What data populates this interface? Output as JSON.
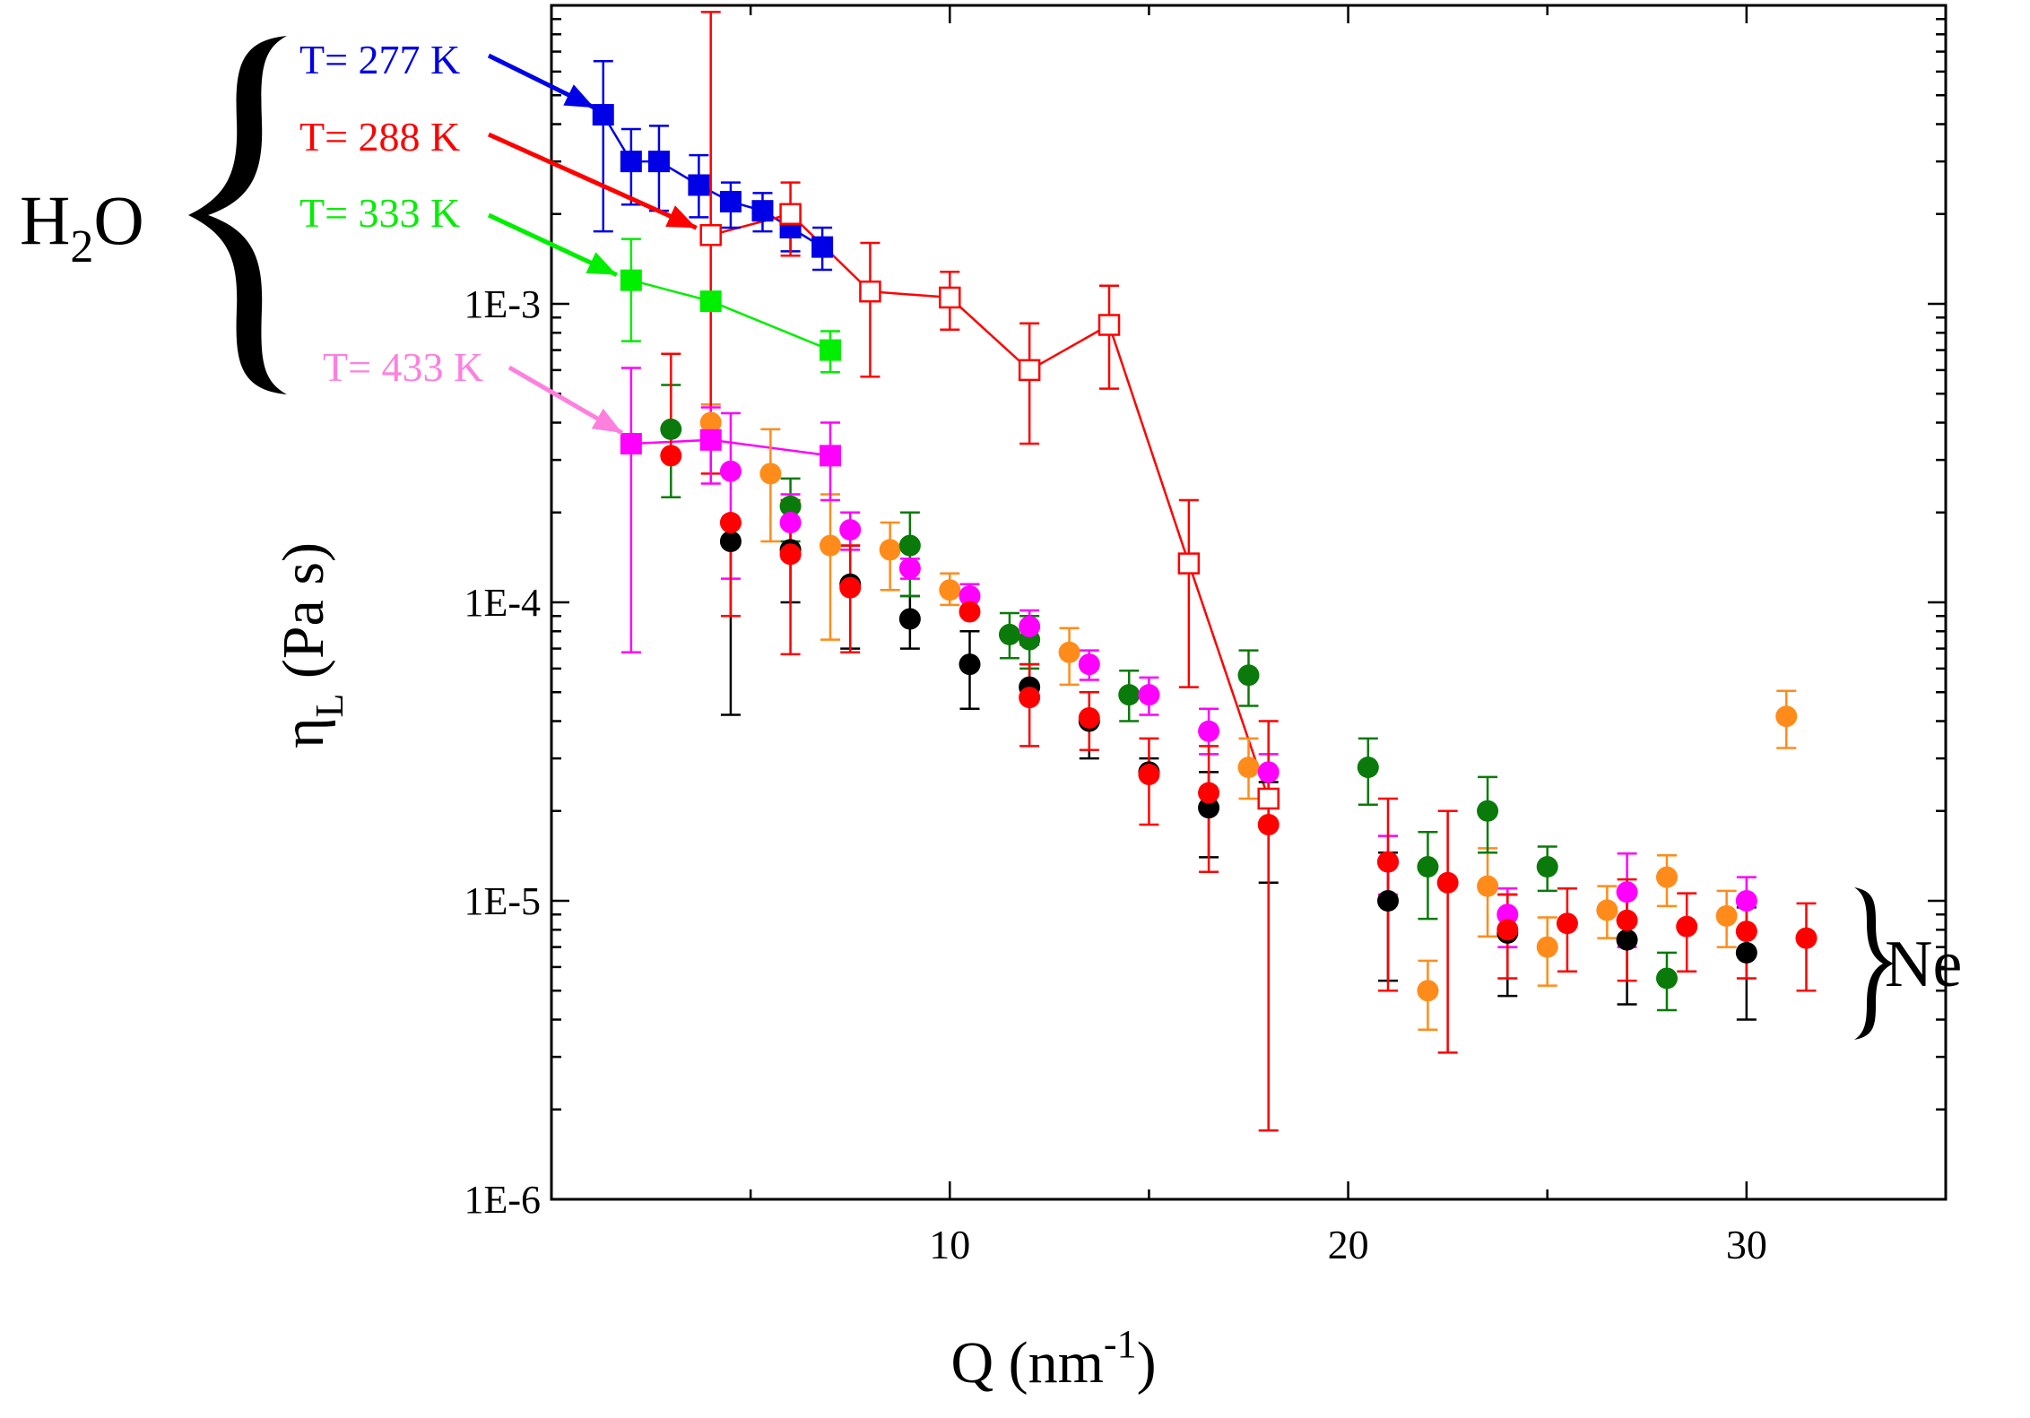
{
  "chart_data": {
    "type": "scatter",
    "title": "",
    "xlabel": "Q (nm",
    "xlabel_sup": "-1",
    "xlabel_close": ")",
    "ylabel": "η",
    "ylabel_sub": "L",
    "ylabel_units": " (Pa s)",
    "xlim": [
      0,
      35
    ],
    "ylim": [
      1e-06,
      0.01
    ],
    "yscale": "log",
    "x_ticks": [
      10,
      20,
      30
    ],
    "x_tick_labels": [
      "10",
      "20",
      "30"
    ],
    "y_ticks": [
      1e-06,
      1e-05,
      0.0001,
      0.001
    ],
    "y_tick_labels": [
      "1E-6",
      "1E-5",
      "1E-4",
      "1E-3"
    ],
    "series_colors": {
      "h2o_277": "#0000e6",
      "h2o_288": "#ff0000",
      "h2o_333": "#00ee00",
      "h2o_433": "#ff00ff",
      "ne_black": "#000000",
      "ne_red": "#ff0000",
      "ne_orange": "#ff8c1a",
      "ne_green": "#0a7a0a",
      "ne_magenta": "#ff00ff"
    },
    "series": [
      {
        "key": "ne_black",
        "name": "Ne (black)",
        "marker": "circle",
        "line": false,
        "points": [
          {
            "x": 4.5,
            "y": 0.00016,
            "lo": 4.2e-05,
            "hi": 0.00016
          },
          {
            "x": 6.0,
            "y": 0.00015,
            "lo": 0.0001,
            "hi": 0.00015
          },
          {
            "x": 7.5,
            "y": 0.000115,
            "lo": 7e-05,
            "hi": 0.000155
          },
          {
            "x": 9.0,
            "y": 8.8e-05,
            "lo": 7e-05,
            "hi": 0.000105
          },
          {
            "x": 10.5,
            "y": 6.2e-05,
            "lo": 4.4e-05,
            "hi": 8e-05
          },
          {
            "x": 12.0,
            "y": 5.2e-05,
            "lo": 5.2e-05,
            "hi": 6.2e-05
          },
          {
            "x": 13.5,
            "y": 4e-05,
            "lo": 3e-05,
            "hi": 5e-05
          },
          {
            "x": 15.0,
            "y": 2.7e-05,
            "lo": 2.7e-05,
            "hi": 3e-05
          },
          {
            "x": 16.5,
            "y": 2.05e-05,
            "lo": 1.4e-05,
            "hi": 2.7e-05
          },
          {
            "x": 18.0,
            "y": 2.2e-05,
            "lo": 1.15e-05,
            "hi": 2.5e-05
          },
          {
            "x": 21.0,
            "y": 1e-05,
            "lo": 5.4e-06,
            "hi": 1.45e-05
          },
          {
            "x": 24.0,
            "y": 7.8e-06,
            "lo": 4.8e-06,
            "hi": 1.05e-05
          },
          {
            "x": 27.0,
            "y": 7.4e-06,
            "lo": 4.5e-06,
            "hi": 1.05e-05
          },
          {
            "x": 30.0,
            "y": 6.7e-06,
            "lo": 4e-06,
            "hi": 9.5e-06
          }
        ]
      },
      {
        "key": "ne_orange",
        "name": "Ne (orange)",
        "marker": "circle",
        "line": false,
        "points": [
          {
            "x": 4.0,
            "y": 0.0004,
            "lo": 0.0004,
            "hi": 0.00046
          },
          {
            "x": 5.5,
            "y": 0.00027,
            "lo": 0.00016,
            "hi": 0.00038
          },
          {
            "x": 7.0,
            "y": 0.000155,
            "lo": 7.5e-05,
            "hi": 0.00023
          },
          {
            "x": 8.5,
            "y": 0.00015,
            "lo": 0.00011,
            "hi": 0.000185
          },
          {
            "x": 10.0,
            "y": 0.00011,
            "lo": 9.8e-05,
            "hi": 0.000125
          },
          {
            "x": 13.0,
            "y": 6.8e-05,
            "lo": 5.3e-05,
            "hi": 8.2e-05
          },
          {
            "x": 17.5,
            "y": 2.8e-05,
            "lo": 2.2e-05,
            "hi": 3.5e-05
          },
          {
            "x": 22.0,
            "y": 5e-06,
            "lo": 3.7e-06,
            "hi": 6.3e-06
          },
          {
            "x": 23.5,
            "y": 1.12e-05,
            "lo": 7.6e-06,
            "hi": 1.5e-05
          },
          {
            "x": 25.0,
            "y": 7e-06,
            "lo": 5.2e-06,
            "hi": 8.8e-06
          },
          {
            "x": 26.5,
            "y": 9.3e-06,
            "lo": 7.5e-06,
            "hi": 1.12e-05
          },
          {
            "x": 28.0,
            "y": 1.2e-05,
            "lo": 9.6e-06,
            "hi": 1.42e-05
          },
          {
            "x": 29.5,
            "y": 8.9e-06,
            "lo": 7e-06,
            "hi": 1.08e-05
          },
          {
            "x": 31.0,
            "y": 4.15e-05,
            "lo": 3.25e-05,
            "hi": 5.05e-05
          }
        ]
      },
      {
        "key": "ne_green",
        "name": "Ne (green)",
        "marker": "circle",
        "line": false,
        "points": [
          {
            "x": 3.0,
            "y": 0.00038,
            "lo": 0.000225,
            "hi": 0.000535
          },
          {
            "x": 6.0,
            "y": 0.00021,
            "lo": 0.00016,
            "hi": 0.00026
          },
          {
            "x": 9.0,
            "y": 0.000155,
            "lo": 0.000105,
            "hi": 0.0002
          },
          {
            "x": 11.5,
            "y": 7.8e-05,
            "lo": 6.5e-05,
            "hi": 9.2e-05
          },
          {
            "x": 12.0,
            "y": 7.5e-05,
            "lo": 6e-05,
            "hi": 9e-05
          },
          {
            "x": 14.5,
            "y": 4.9e-05,
            "lo": 4e-05,
            "hi": 5.9e-05
          },
          {
            "x": 17.5,
            "y": 5.7e-05,
            "lo": 4.5e-05,
            "hi": 6.9e-05
          },
          {
            "x": 20.5,
            "y": 2.8e-05,
            "lo": 2.1e-05,
            "hi": 3.5e-05
          },
          {
            "x": 22.0,
            "y": 1.3e-05,
            "lo": 8.7e-06,
            "hi": 1.7e-05
          },
          {
            "x": 23.5,
            "y": 2e-05,
            "lo": 1.45e-05,
            "hi": 2.6e-05
          },
          {
            "x": 25.0,
            "y": 1.3e-05,
            "lo": 1.08e-05,
            "hi": 1.52e-05
          },
          {
            "x": 28.0,
            "y": 5.5e-06,
            "lo": 4.3e-06,
            "hi": 6.7e-06
          }
        ]
      },
      {
        "key": "ne_magenta",
        "name": "Ne (magenta)",
        "marker": "circle",
        "line": false,
        "points": [
          {
            "x": 4.5,
            "y": 0.000275,
            "lo": 0.00012,
            "hi": 0.00043
          },
          {
            "x": 6.0,
            "y": 0.000185,
            "lo": 0.00014,
            "hi": 0.00023
          },
          {
            "x": 7.5,
            "y": 0.000175,
            "lo": 0.00015,
            "hi": 0.0002
          },
          {
            "x": 9.0,
            "y": 0.00013,
            "lo": 0.00012,
            "hi": 0.00014
          },
          {
            "x": 10.5,
            "y": 0.000105,
            "lo": 9.5e-05,
            "hi": 0.000115
          },
          {
            "x": 12.0,
            "y": 8.3e-05,
            "lo": 7.2e-05,
            "hi": 9.4e-05
          },
          {
            "x": 13.5,
            "y": 6.2e-05,
            "lo": 5.5e-05,
            "hi": 6.9e-05
          },
          {
            "x": 15.0,
            "y": 4.9e-05,
            "lo": 4.2e-05,
            "hi": 5.6e-05
          },
          {
            "x": 16.5,
            "y": 3.7e-05,
            "lo": 3.1e-05,
            "hi": 4.4e-05
          },
          {
            "x": 18.0,
            "y": 2.7e-05,
            "lo": 2.3e-05,
            "hi": 3.1e-05
          },
          {
            "x": 21.0,
            "y": 1.35e-05,
            "lo": 1.05e-05,
            "hi": 1.65e-05
          },
          {
            "x": 24.0,
            "y": 9e-06,
            "lo": 7e-06,
            "hi": 1.1e-05
          },
          {
            "x": 27.0,
            "y": 1.07e-05,
            "lo": 7e-06,
            "hi": 1.44e-05
          },
          {
            "x": 30.0,
            "y": 1e-05,
            "lo": 8e-06,
            "hi": 1.2e-05
          }
        ]
      },
      {
        "key": "ne_red",
        "name": "Ne (red)",
        "marker": "circle",
        "line": false,
        "points": [
          {
            "x": 3.0,
            "y": 0.00031,
            "lo": 0.00031,
            "hi": 0.00068
          },
          {
            "x": 4.5,
            "y": 0.000185,
            "lo": 9e-05,
            "hi": 0.000185
          },
          {
            "x": 6.0,
            "y": 0.000145,
            "lo": 6.7e-05,
            "hi": 0.00022
          },
          {
            "x": 7.5,
            "y": 0.000112,
            "lo": 6.8e-05,
            "hi": 0.000155
          },
          {
            "x": 10.5,
            "y": 9.3e-05,
            "lo": 9.3e-05,
            "hi": 9.3e-05
          },
          {
            "x": 12.0,
            "y": 4.8e-05,
            "lo": 3.3e-05,
            "hi": 6.2e-05
          },
          {
            "x": 13.5,
            "y": 4.1e-05,
            "lo": 3.2e-05,
            "hi": 5e-05
          },
          {
            "x": 15.0,
            "y": 2.65e-05,
            "lo": 1.8e-05,
            "hi": 3.5e-05
          },
          {
            "x": 16.5,
            "y": 2.3e-05,
            "lo": 1.25e-05,
            "hi": 3.3e-05
          },
          {
            "x": 18.0,
            "y": 1.8e-05,
            "lo": 1.7e-06,
            "hi": 4e-05
          },
          {
            "x": 21.0,
            "y": 1.35e-05,
            "lo": 5e-06,
            "hi": 2.2e-05
          },
          {
            "x": 22.5,
            "y": 1.15e-05,
            "lo": 3.1e-06,
            "hi": 2e-05
          },
          {
            "x": 24.0,
            "y": 8e-06,
            "lo": 5.5e-06,
            "hi": 1.05e-05
          },
          {
            "x": 25.5,
            "y": 8.4e-06,
            "lo": 5.8e-06,
            "hi": 1.1e-05
          },
          {
            "x": 27.0,
            "y": 8.6e-06,
            "lo": 5.4e-06,
            "hi": 1.18e-05
          },
          {
            "x": 28.5,
            "y": 8.2e-06,
            "lo": 5.8e-06,
            "hi": 1.06e-05
          },
          {
            "x": 30.0,
            "y": 7.9e-06,
            "lo": 5.5e-06,
            "hi": 1.03e-05
          },
          {
            "x": 31.5,
            "y": 7.5e-06,
            "lo": 5e-06,
            "hi": 9.8e-06
          }
        ]
      },
      {
        "key": "h2o_277",
        "name": "T= 277 K",
        "marker": "square",
        "line": true,
        "points": [
          {
            "x": 1.3,
            "y": 0.0043,
            "lo": 0.00175,
            "hi": 0.0065
          },
          {
            "x": 2.0,
            "y": 0.003,
            "lo": 0.00215,
            "hi": 0.00385
          },
          {
            "x": 2.7,
            "y": 0.003,
            "lo": 0.00205,
            "hi": 0.00395
          },
          {
            "x": 3.7,
            "y": 0.0025,
            "lo": 0.00195,
            "hi": 0.00315
          },
          {
            "x": 4.5,
            "y": 0.0022,
            "lo": 0.0018,
            "hi": 0.00255
          },
          {
            "x": 5.3,
            "y": 0.00205,
            "lo": 0.00175,
            "hi": 0.00235
          },
          {
            "x": 6.0,
            "y": 0.0018,
            "lo": 0.0015,
            "hi": 0.00215
          },
          {
            "x": 6.8,
            "y": 0.00155,
            "lo": 0.0013,
            "hi": 0.0018
          }
        ]
      },
      {
        "key": "h2o_288",
        "name": "T= 288 K",
        "marker": "square-open",
        "line": true,
        "points": [
          {
            "x": 4.0,
            "y": 0.0017,
            "lo": 0.00027,
            "hi": 0.0095
          },
          {
            "x": 6.0,
            "y": 0.002,
            "lo": 0.00145,
            "hi": 0.00255
          },
          {
            "x": 8.0,
            "y": 0.0011,
            "lo": 0.00057,
            "hi": 0.0016
          },
          {
            "x": 10.0,
            "y": 0.00105,
            "lo": 0.00082,
            "hi": 0.00128
          },
          {
            "x": 12.0,
            "y": 0.0006,
            "lo": 0.00034,
            "hi": 0.00086
          },
          {
            "x": 14.0,
            "y": 0.00085,
            "lo": 0.00052,
            "hi": 0.00115
          },
          {
            "x": 16.0,
            "y": 0.000135,
            "lo": 5.2e-05,
            "hi": 0.00022
          },
          {
            "x": 18.0,
            "y": 2.2e-05,
            "lo": 2.2e-05,
            "hi": 2.2e-05
          }
        ]
      },
      {
        "key": "h2o_333",
        "name": "T= 333 K",
        "marker": "square",
        "line": true,
        "points": [
          {
            "x": 2.0,
            "y": 0.0012,
            "lo": 0.00075,
            "hi": 0.00165
          },
          {
            "x": 4.0,
            "y": 0.00102,
            "lo": 0.00102,
            "hi": 0.00102
          },
          {
            "x": 7.0,
            "y": 0.0007,
            "lo": 0.00059,
            "hi": 0.00081
          }
        ]
      },
      {
        "key": "h2o_433",
        "name": "T= 433 K",
        "marker": "square",
        "line": true,
        "points": [
          {
            "x": 2.0,
            "y": 0.00034,
            "lo": 6.8e-05,
            "hi": 0.00061
          },
          {
            "x": 4.0,
            "y": 0.00035,
            "lo": 0.00025,
            "hi": 0.00045
          },
          {
            "x": 7.0,
            "y": 0.00031,
            "lo": 0.00022,
            "hi": 0.0004
          }
        ]
      }
    ],
    "annotations": {
      "t277": {
        "text": "T= 277 K",
        "color": "#0000e6"
      },
      "t288": {
        "text": "T= 288 K",
        "color": "#ff0000"
      },
      "t333": {
        "text": "T= 333 K",
        "color": "#00ee00"
      },
      "t433": {
        "text": "T= 433 K",
        "color": "#ff7fdf"
      },
      "h2o_main": "H",
      "h2o_sub": "2",
      "h2o_end": "O",
      "ne": "Ne"
    }
  }
}
